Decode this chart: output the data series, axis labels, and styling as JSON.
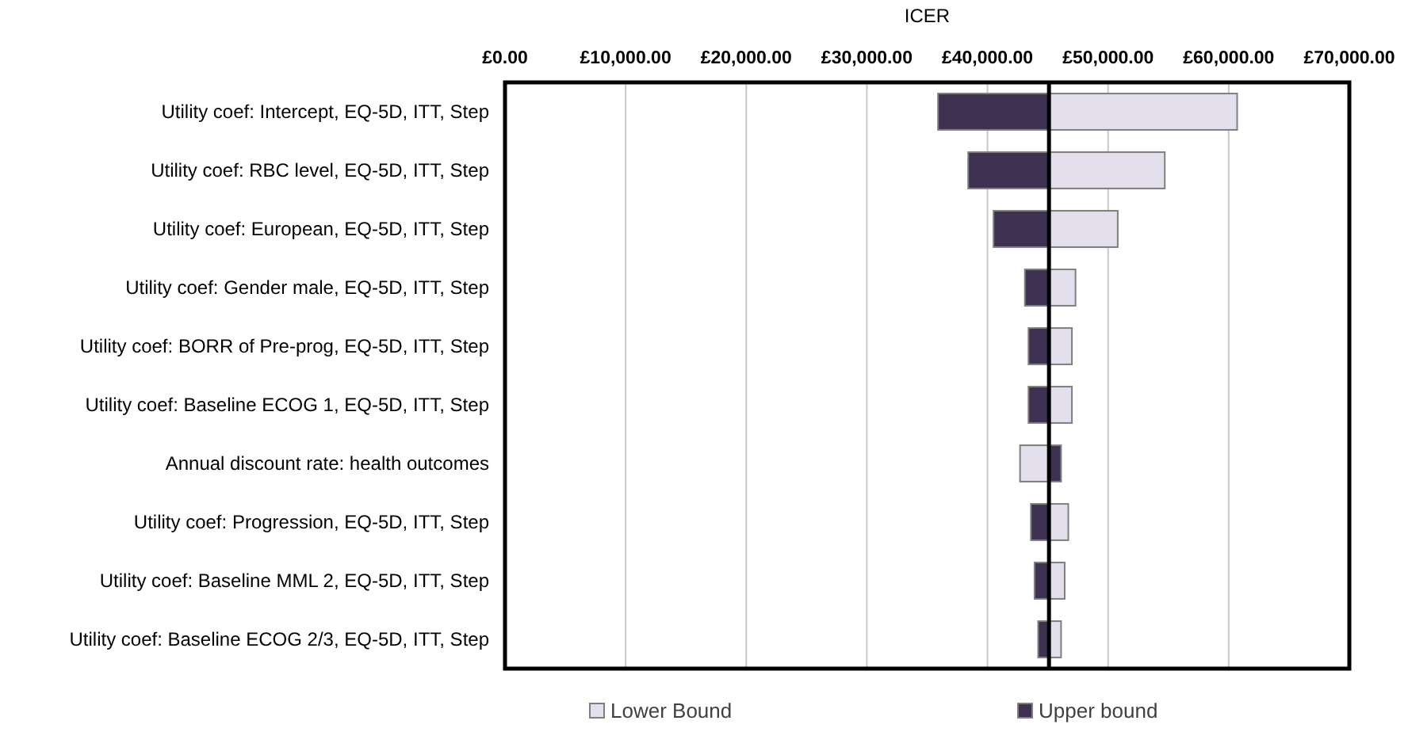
{
  "chart_data": {
    "type": "bar",
    "orientation": "horizontal",
    "xlabel": "ICER",
    "categories": [
      "Utility coef: Intercept, EQ-5D, ITT, Step",
      "Utility coef: RBC level, EQ-5D, ITT,  Step",
      "Utility coef: European, EQ-5D, ITT, Step",
      "Utility coef: Gender male, EQ-5D, ITT, Step",
      "Utility coef: BORR of Pre-prog, EQ-5D, ITT, Step",
      "Utility coef: Baseline ECOG 1, EQ-5D, ITT, Step",
      "Annual discount rate: health outcomes",
      "Utility coef: Progression, EQ-5D, ITT, Step",
      "Utility coef: Baseline MML 2, EQ-5D, ITT, Step",
      "Utility coef: Baseline ECOG 2/3, EQ-5D, ITT, Step"
    ],
    "series": [
      {
        "name": "Lower Bound",
        "color": "#e4dfec",
        "base": [
          45100,
          45100,
          45100,
          45100,
          45100,
          45100,
          42700,
          45100,
          45100,
          45100
        ],
        "values": [
          15600,
          9600,
          5700,
          2200,
          1900,
          1900,
          2400,
          1600,
          1300,
          1000
        ]
      },
      {
        "name": "Upper bound",
        "color": "#3f3151",
        "base": [
          35900,
          38400,
          40500,
          43100,
          43400,
          43400,
          45100,
          43600,
          43900,
          44200
        ],
        "values": [
          9200,
          6700,
          4600,
          2000,
          1700,
          1700,
          1000,
          1500,
          1200,
          900
        ]
      }
    ],
    "xlim": [
      0,
      70000
    ],
    "xticks": [
      {
        "value": 0,
        "label": "£0.00"
      },
      {
        "value": 10000,
        "label": "£10,000.00"
      },
      {
        "value": 20000,
        "label": "£20,000.00"
      },
      {
        "value": 30000,
        "label": "£30,000.00"
      },
      {
        "value": 40000,
        "label": "£40,000.00"
      },
      {
        "value": 50000,
        "label": "£50,000.00"
      },
      {
        "value": 60000,
        "label": "£60,000.00"
      },
      {
        "value": 70000,
        "label": "£70,000.00"
      }
    ],
    "ref_lines": [
      {
        "axis": "x",
        "value": 45100,
        "color": "#000000"
      }
    ],
    "grid": "x",
    "legend": "bottom"
  }
}
